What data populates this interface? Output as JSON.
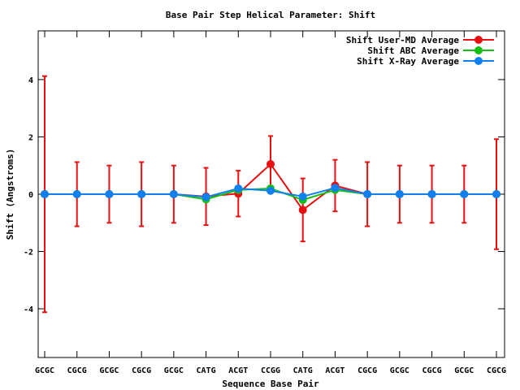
{
  "chart_data": {
    "type": "line",
    "title": "Base Pair Step Helical Parameter: Shift",
    "xlabel": "Sequence Base Pair",
    "ylabel": "Shift (Angstroms)",
    "categories": [
      "GCGC",
      "CGCG",
      "GCGC",
      "CGCG",
      "GCGC",
      "CATG",
      "ACGT",
      "CCGG",
      "CATG",
      "ACGT",
      "CGCG",
      "GCGC",
      "CGCG",
      "GCGC",
      "CGCG"
    ],
    "ylim": [
      -5.7,
      5.7
    ],
    "yticks": [
      -4,
      -2,
      0,
      2,
      4
    ],
    "legend_position": "top-right",
    "grid": false,
    "series": [
      {
        "name": "Shift User-MD Average",
        "color": "#e61010",
        "values": [
          0,
          0,
          0,
          0,
          0,
          -0.08,
          0.02,
          1.05,
          -0.55,
          0.3,
          0,
          0,
          0,
          0,
          0
        ],
        "error": [
          4.12,
          1.12,
          1.0,
          1.12,
          1.0,
          1.0,
          0.8,
          0.98,
          1.1,
          0.9,
          1.12,
          1.0,
          1.0,
          1.0,
          1.92
        ]
      },
      {
        "name": "Shift ABC Average",
        "color": "#10c010",
        "values": [
          0,
          0,
          0,
          0,
          0,
          -0.18,
          0.15,
          0.2,
          -0.2,
          0.15,
          0,
          0,
          0,
          0,
          0
        ]
      },
      {
        "name": "Shift X-Ray Average",
        "color": "#1080f0",
        "values": [
          0,
          0,
          0,
          0,
          0,
          -0.1,
          0.2,
          0.12,
          -0.08,
          0.22,
          0,
          0,
          0,
          0,
          0
        ]
      }
    ]
  }
}
